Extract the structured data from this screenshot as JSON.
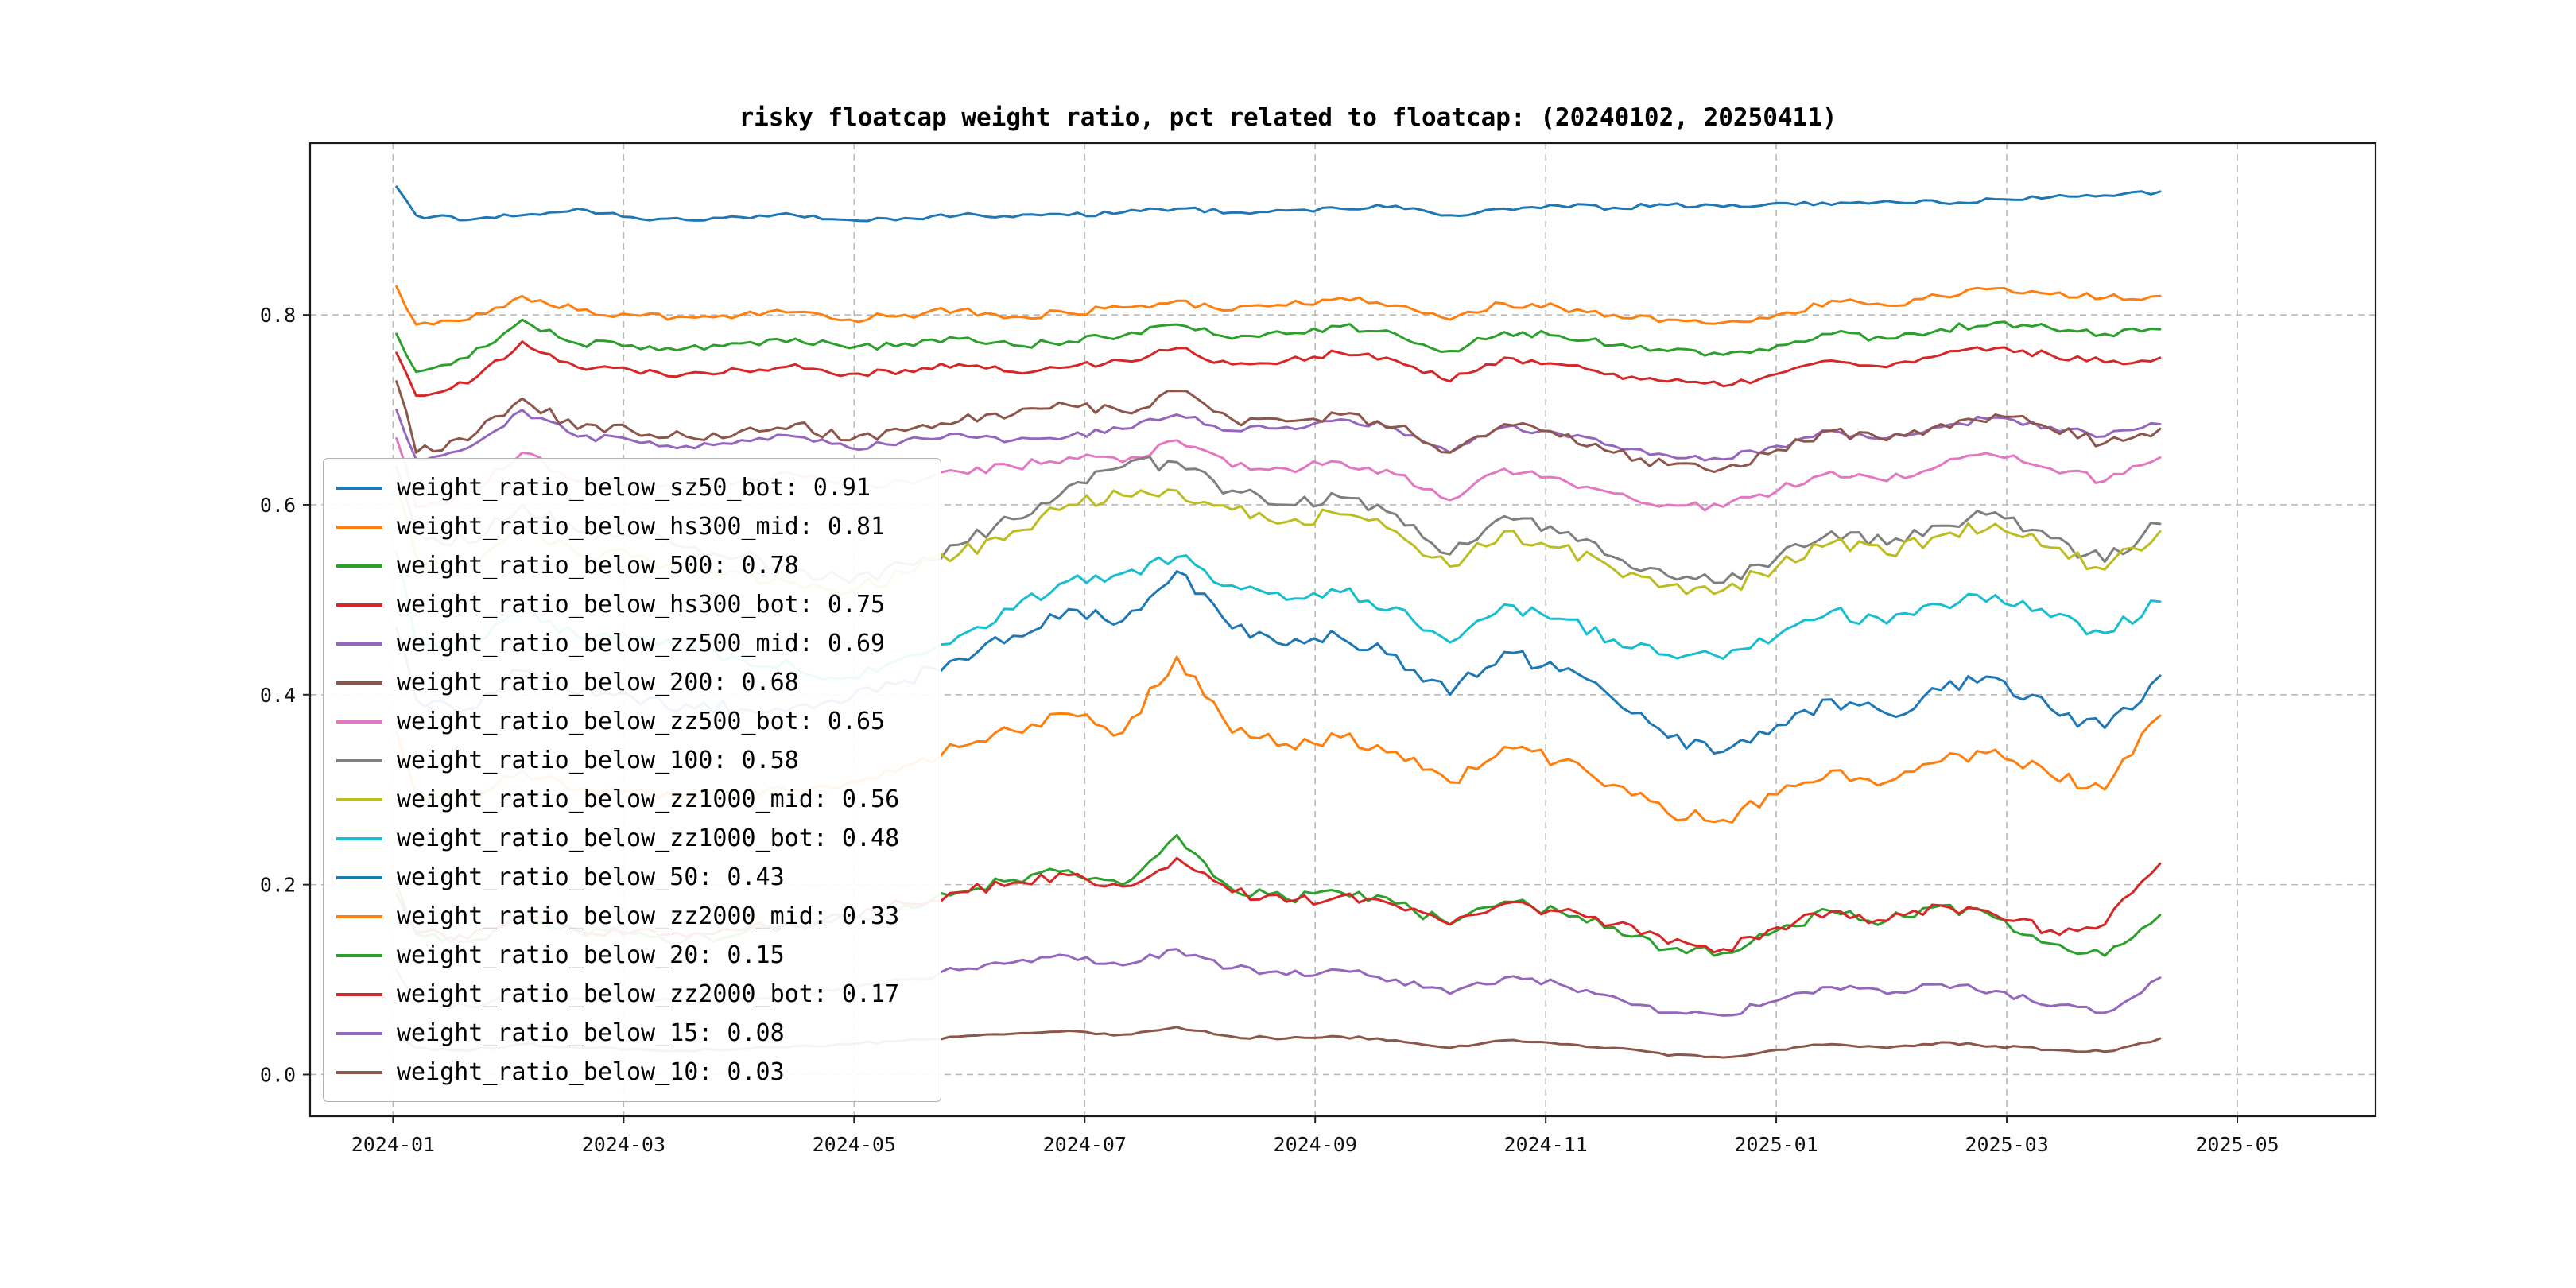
{
  "chart_data": {
    "type": "line",
    "title": "risky floatcap weight ratio, pct related to floatcap: (20240102, 20250411)",
    "grid": true,
    "legend_position": "center-left",
    "xlim": [
      -0.72,
      17.2
    ],
    "ylim": [
      -0.044,
      0.981
    ],
    "x_unit": "months since 2024-01",
    "x_ticks": [
      {
        "pos": 0,
        "label": "2024-01"
      },
      {
        "pos": 2,
        "label": "2024-03"
      },
      {
        "pos": 4,
        "label": "2024-05"
      },
      {
        "pos": 6,
        "label": "2024-07"
      },
      {
        "pos": 8,
        "label": "2024-09"
      },
      {
        "pos": 10,
        "label": "2024-11"
      },
      {
        "pos": 12,
        "label": "2025-01"
      },
      {
        "pos": 14,
        "label": "2025-03"
      },
      {
        "pos": 16,
        "label": "2025-05"
      }
    ],
    "y_ticks": [
      {
        "pos": 0.0,
        "label": "0.0"
      },
      {
        "pos": 0.2,
        "label": "0.2"
      },
      {
        "pos": 0.4,
        "label": "0.4"
      },
      {
        "pos": 0.6,
        "label": "0.6"
      },
      {
        "pos": 0.8,
        "label": "0.8"
      }
    ],
    "x": [
      0.03,
      0.2,
      0.65,
      1.12,
      1.6,
      2.07,
      2.54,
      3.02,
      3.49,
      3.96,
      4.44,
      4.91,
      5.38,
      5.86,
      6.33,
      6.8,
      7.28,
      7.75,
      8.22,
      8.7,
      9.17,
      9.64,
      10.12,
      10.59,
      11.06,
      11.54,
      12.01,
      12.48,
      12.96,
      13.43,
      13.9,
      14.38,
      14.85,
      15.33
    ],
    "series": [
      {
        "name": "weight_ratio_below_sz50_bot",
        "label": "weight_ratio_below_sz50_bot: 0.91",
        "color": "#1f77b4",
        "jitter": 0.0025,
        "values": [
          0.935,
          0.905,
          0.9,
          0.905,
          0.912,
          0.903,
          0.9,
          0.903,
          0.905,
          0.9,
          0.902,
          0.905,
          0.903,
          0.905,
          0.908,
          0.912,
          0.908,
          0.91,
          0.912,
          0.915,
          0.905,
          0.912,
          0.915,
          0.913,
          0.916,
          0.914,
          0.918,
          0.916,
          0.92,
          0.918,
          0.922,
          0.924,
          0.926,
          0.93
        ]
      },
      {
        "name": "weight_ratio_below_hs300_mid",
        "label": "weight_ratio_below_hs300_mid: 0.81",
        "color": "#ff7f0e",
        "jitter": 0.004,
        "values": [
          0.83,
          0.79,
          0.795,
          0.82,
          0.805,
          0.8,
          0.798,
          0.8,
          0.803,
          0.795,
          0.8,
          0.805,
          0.798,
          0.802,
          0.808,
          0.815,
          0.805,
          0.81,
          0.818,
          0.81,
          0.795,
          0.812,
          0.808,
          0.8,
          0.795,
          0.792,
          0.8,
          0.815,
          0.81,
          0.82,
          0.828,
          0.822,
          0.818,
          0.82
        ]
      },
      {
        "name": "weight_ratio_below_500",
        "label": "weight_ratio_below_500: 0.78",
        "color": "#2ca02c",
        "jitter": 0.004,
        "values": [
          0.78,
          0.74,
          0.755,
          0.795,
          0.77,
          0.768,
          0.765,
          0.77,
          0.775,
          0.765,
          0.77,
          0.775,
          0.768,
          0.772,
          0.778,
          0.79,
          0.775,
          0.78,
          0.788,
          0.78,
          0.762,
          0.782,
          0.778,
          0.768,
          0.762,
          0.758,
          0.768,
          0.78,
          0.775,
          0.785,
          0.792,
          0.786,
          0.78,
          0.785
        ]
      },
      {
        "name": "weight_ratio_below_hs300_bot",
        "label": "weight_ratio_below_hs300_bot: 0.75",
        "color": "#d62728",
        "jitter": 0.004,
        "values": [
          0.76,
          0.715,
          0.728,
          0.772,
          0.745,
          0.742,
          0.738,
          0.742,
          0.748,
          0.738,
          0.742,
          0.748,
          0.74,
          0.745,
          0.752,
          0.765,
          0.748,
          0.752,
          0.76,
          0.752,
          0.73,
          0.755,
          0.748,
          0.738,
          0.73,
          0.725,
          0.738,
          0.752,
          0.745,
          0.758,
          0.765,
          0.758,
          0.75,
          0.755
        ]
      },
      {
        "name": "weight_ratio_below_zz500_mid",
        "label": "weight_ratio_below_zz500_mid: 0.69",
        "color": "#9467bd",
        "jitter": 0.004,
        "values": [
          0.7,
          0.648,
          0.66,
          0.7,
          0.672,
          0.668,
          0.662,
          0.668,
          0.672,
          0.66,
          0.668,
          0.675,
          0.668,
          0.672,
          0.68,
          0.695,
          0.678,
          0.682,
          0.69,
          0.68,
          0.655,
          0.682,
          0.675,
          0.662,
          0.652,
          0.648,
          0.662,
          0.678,
          0.67,
          0.682,
          0.692,
          0.682,
          0.672,
          0.685
        ]
      },
      {
        "name": "weight_ratio_below_200",
        "label": "weight_ratio_below_200: 0.68",
        "color": "#8c564b",
        "jitter": 0.006,
        "values": [
          0.73,
          0.655,
          0.668,
          0.712,
          0.68,
          0.678,
          0.672,
          0.678,
          0.685,
          0.668,
          0.678,
          0.688,
          0.695,
          0.705,
          0.698,
          0.72,
          0.69,
          0.688,
          0.695,
          0.682,
          0.655,
          0.685,
          0.672,
          0.655,
          0.642,
          0.638,
          0.658,
          0.678,
          0.668,
          0.685,
          0.695,
          0.68,
          0.665,
          0.68
        ]
      },
      {
        "name": "weight_ratio_below_zz500_bot",
        "label": "weight_ratio_below_zz500_bot: 0.65",
        "color": "#e377c2",
        "jitter": 0.005,
        "values": [
          0.67,
          0.598,
          0.612,
          0.655,
          0.625,
          0.622,
          0.618,
          0.625,
          0.632,
          0.615,
          0.625,
          0.635,
          0.64,
          0.65,
          0.645,
          0.668,
          0.64,
          0.638,
          0.645,
          0.632,
          0.605,
          0.638,
          0.628,
          0.612,
          0.6,
          0.598,
          0.615,
          0.635,
          0.625,
          0.642,
          0.652,
          0.638,
          0.625,
          0.65
        ]
      },
      {
        "name": "weight_ratio_below_100",
        "label": "weight_ratio_below_100: 0.58",
        "color": "#7f7f7f",
        "jitter": 0.008,
        "values": [
          0.64,
          0.572,
          0.56,
          0.6,
          0.572,
          0.568,
          0.555,
          0.545,
          0.532,
          0.518,
          0.538,
          0.558,
          0.585,
          0.62,
          0.64,
          0.645,
          0.615,
          0.6,
          0.608,
          0.59,
          0.548,
          0.588,
          0.57,
          0.545,
          0.525,
          0.518,
          0.545,
          0.572,
          0.558,
          0.578,
          0.592,
          0.565,
          0.54,
          0.58
        ]
      },
      {
        "name": "weight_ratio_below_zz1000_mid",
        "label": "weight_ratio_below_zz1000_mid: 0.56",
        "color": "#bcbd22",
        "jitter": 0.008,
        "values": [
          0.62,
          0.545,
          0.535,
          0.578,
          0.548,
          0.545,
          0.535,
          0.528,
          0.518,
          0.508,
          0.528,
          0.548,
          0.572,
          0.6,
          0.61,
          0.615,
          0.595,
          0.582,
          0.59,
          0.572,
          0.535,
          0.572,
          0.555,
          0.532,
          0.515,
          0.51,
          0.535,
          0.56,
          0.548,
          0.568,
          0.58,
          0.555,
          0.532,
          0.572
        ]
      },
      {
        "name": "weight_ratio_below_zz1000_bot",
        "label": "weight_ratio_below_zz1000_bot: 0.48",
        "color": "#17becf",
        "jitter": 0.007,
        "values": [
          0.55,
          0.455,
          0.445,
          0.492,
          0.462,
          0.458,
          0.448,
          0.438,
          0.428,
          0.418,
          0.44,
          0.462,
          0.49,
          0.52,
          0.528,
          0.545,
          0.515,
          0.5,
          0.508,
          0.492,
          0.455,
          0.495,
          0.48,
          0.458,
          0.442,
          0.438,
          0.462,
          0.488,
          0.475,
          0.495,
          0.505,
          0.482,
          0.465,
          0.498
        ]
      },
      {
        "name": "weight_ratio_below_50",
        "label": "weight_ratio_below_50: 0.43",
        "color": "#1f77b4",
        "jitter": 0.009,
        "values": [
          0.47,
          0.395,
          0.385,
          0.425,
          0.4,
          0.398,
          0.39,
          0.385,
          0.388,
          0.395,
          0.415,
          0.438,
          0.462,
          0.49,
          0.478,
          0.53,
          0.47,
          0.452,
          0.46,
          0.442,
          0.4,
          0.445,
          0.425,
          0.395,
          0.355,
          0.34,
          0.368,
          0.395,
          0.38,
          0.405,
          0.418,
          0.385,
          0.365,
          0.42
        ]
      },
      {
        "name": "weight_ratio_below_zz2000_mid",
        "label": "weight_ratio_below_zz2000_mid: 0.33",
        "color": "#ff7f0e",
        "jitter": 0.007,
        "values": [
          0.36,
          0.295,
          0.288,
          0.32,
          0.3,
          0.298,
          0.292,
          0.295,
          0.3,
          0.308,
          0.325,
          0.345,
          0.362,
          0.38,
          0.36,
          0.44,
          0.36,
          0.348,
          0.355,
          0.34,
          0.308,
          0.345,
          0.33,
          0.305,
          0.275,
          0.268,
          0.295,
          0.32,
          0.308,
          0.33,
          0.342,
          0.315,
          0.3,
          0.378
        ]
      },
      {
        "name": "weight_ratio_below_20",
        "label": "weight_ratio_below_20: 0.15",
        "color": "#2ca02c",
        "jitter": 0.006,
        "values": [
          0.2,
          0.148,
          0.14,
          0.162,
          0.15,
          0.148,
          0.142,
          0.148,
          0.155,
          0.162,
          0.178,
          0.192,
          0.205,
          0.215,
          0.2,
          0.252,
          0.195,
          0.185,
          0.192,
          0.18,
          0.158,
          0.182,
          0.172,
          0.155,
          0.132,
          0.128,
          0.152,
          0.172,
          0.162,
          0.178,
          0.165,
          0.138,
          0.125,
          0.168
        ]
      },
      {
        "name": "weight_ratio_below_zz2000_bot",
        "label": "weight_ratio_below_zz2000_bot: 0.17",
        "color": "#d62728",
        "jitter": 0.006,
        "values": [
          0.19,
          0.15,
          0.143,
          0.165,
          0.152,
          0.15,
          0.145,
          0.152,
          0.158,
          0.165,
          0.18,
          0.192,
          0.202,
          0.21,
          0.198,
          0.228,
          0.192,
          0.182,
          0.188,
          0.178,
          0.158,
          0.18,
          0.172,
          0.158,
          0.138,
          0.132,
          0.155,
          0.172,
          0.162,
          0.178,
          0.168,
          0.152,
          0.158,
          0.222
        ]
      },
      {
        "name": "weight_ratio_below_15",
        "label": "weight_ratio_below_15: 0.08",
        "color": "#9467bd",
        "jitter": 0.004,
        "values": [
          0.11,
          0.078,
          0.072,
          0.088,
          0.08,
          0.078,
          0.075,
          0.08,
          0.085,
          0.09,
          0.1,
          0.11,
          0.118,
          0.125,
          0.115,
          0.132,
          0.112,
          0.105,
          0.11,
          0.1,
          0.085,
          0.102,
          0.095,
          0.082,
          0.065,
          0.062,
          0.078,
          0.092,
          0.085,
          0.095,
          0.088,
          0.072,
          0.065,
          0.102
        ]
      },
      {
        "name": "weight_ratio_below_10",
        "label": "weight_ratio_below_10: 0.03",
        "color": "#8c564b",
        "jitter": 0.0015,
        "values": [
          0.042,
          0.028,
          0.025,
          0.032,
          0.028,
          0.027,
          0.025,
          0.027,
          0.03,
          0.032,
          0.036,
          0.04,
          0.043,
          0.046,
          0.042,
          0.05,
          0.04,
          0.038,
          0.04,
          0.036,
          0.028,
          0.036,
          0.032,
          0.028,
          0.02,
          0.018,
          0.026,
          0.032,
          0.028,
          0.034,
          0.03,
          0.026,
          0.024,
          0.038
        ]
      }
    ]
  }
}
